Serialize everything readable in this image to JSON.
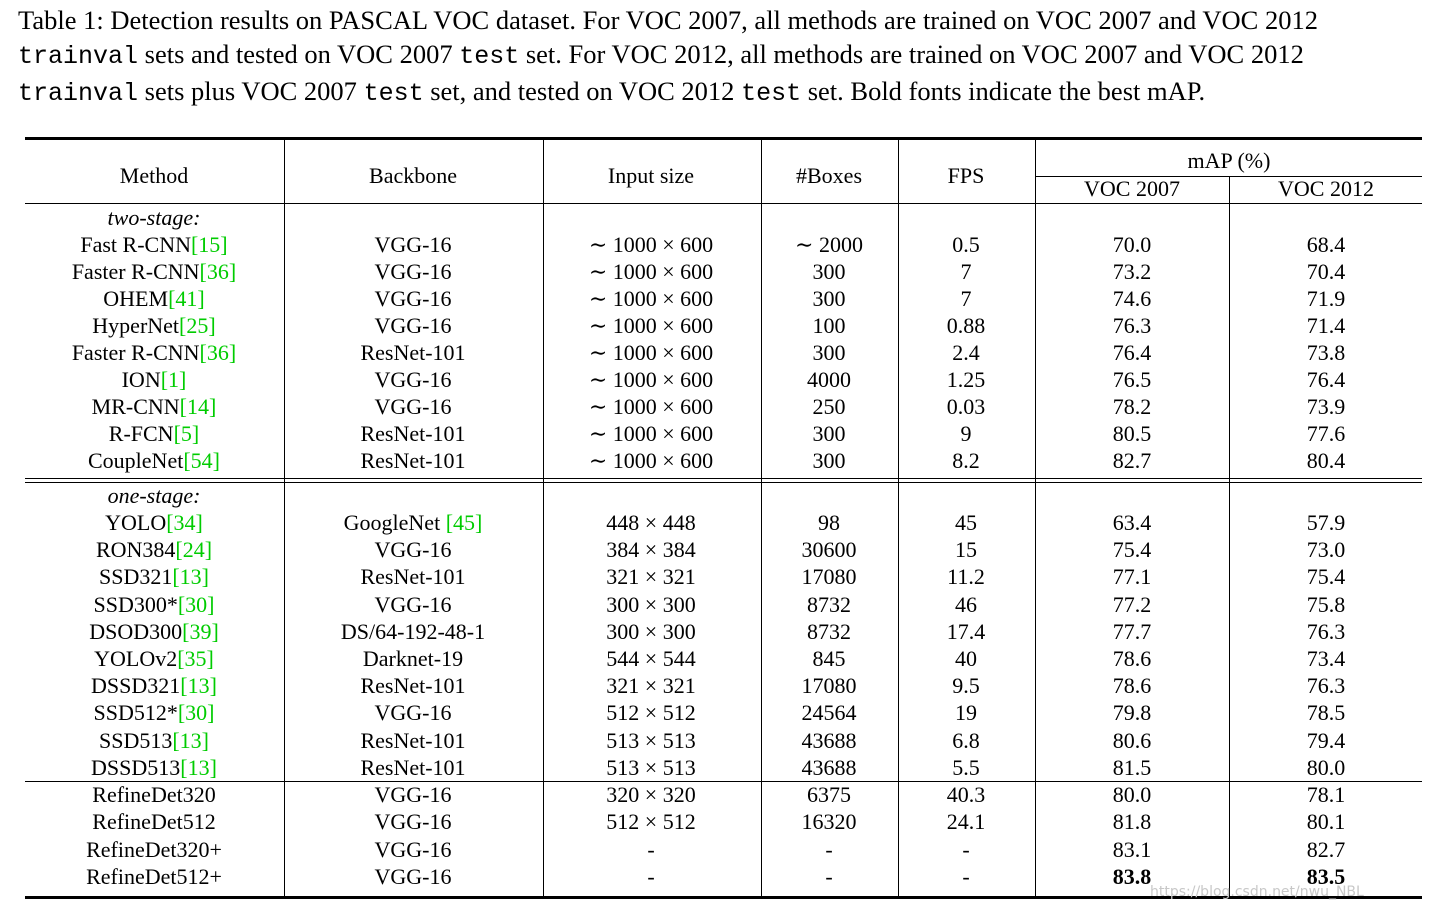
{
  "caption": {
    "label": "Table 1: Detection results on PASCAL VOC dataset. For VOC 2007, all methods are trained on VOC 2007 and VOC 2012",
    "line2_code1": "trainval",
    "line2_text": " sets and tested on VOC 2007 ",
    "line2_code2": "test",
    "line2_text2": " set. For VOC 2012, all methods are trained on VOC 2007 and VOC 2012",
    "line3_code1": "trainval",
    "line3_text": " sets plus VOC 2007 ",
    "line3_code2": "test",
    "line3_text2": " set, and tested on VOC 2012 ",
    "line3_code3": "test",
    "line3_text3": " set. Bold fonts indicate the best mAP."
  },
  "table": {
    "headers": {
      "method": "Method",
      "backbone": "Backbone",
      "input_size": "Input size",
      "boxes": "#Boxes",
      "fps": "FPS",
      "map": "mAP (%)",
      "voc2007": "VOC 2007",
      "voc2012": "VOC 2012"
    },
    "sections": [
      {
        "label": "two-stage:",
        "rows": [
          {
            "method": "Fast R-CNN",
            "ref": "[15]",
            "backbone": "VGG-16",
            "backbone_ref": "",
            "input": "∼ 1000 × 600",
            "boxes": "∼ 2000",
            "fps": "0.5",
            "voc2007": "70.0",
            "voc2012": "68.4"
          },
          {
            "method": "Faster R-CNN",
            "ref": "[36]",
            "backbone": "VGG-16",
            "backbone_ref": "",
            "input": "∼ 1000 × 600",
            "boxes": "300",
            "fps": "7",
            "voc2007": "73.2",
            "voc2012": "70.4"
          },
          {
            "method": "OHEM",
            "ref": "[41]",
            "backbone": "VGG-16",
            "backbone_ref": "",
            "input": "∼ 1000 × 600",
            "boxes": "300",
            "fps": "7",
            "voc2007": "74.6",
            "voc2012": "71.9"
          },
          {
            "method": "HyperNet",
            "ref": "[25]",
            "backbone": "VGG-16",
            "backbone_ref": "",
            "input": "∼ 1000 × 600",
            "boxes": "100",
            "fps": "0.88",
            "voc2007": "76.3",
            "voc2012": "71.4"
          },
          {
            "method": "Faster R-CNN",
            "ref": "[36]",
            "backbone": "ResNet-101",
            "backbone_ref": "",
            "input": "∼ 1000 × 600",
            "boxes": "300",
            "fps": "2.4",
            "voc2007": "76.4",
            "voc2012": "73.8"
          },
          {
            "method": "ION",
            "ref": "[1]",
            "backbone": "VGG-16",
            "backbone_ref": "",
            "input": "∼ 1000 × 600",
            "boxes": "4000",
            "fps": "1.25",
            "voc2007": "76.5",
            "voc2012": "76.4"
          },
          {
            "method": "MR-CNN",
            "ref": "[14]",
            "backbone": "VGG-16",
            "backbone_ref": "",
            "input": "∼ 1000 × 600",
            "boxes": "250",
            "fps": "0.03",
            "voc2007": "78.2",
            "voc2012": "73.9"
          },
          {
            "method": "R-FCN",
            "ref": "[5]",
            "backbone": "ResNet-101",
            "backbone_ref": "",
            "input": "∼ 1000 × 600",
            "boxes": "300",
            "fps": "9",
            "voc2007": "80.5",
            "voc2012": "77.6"
          },
          {
            "method": "CoupleNet",
            "ref": "[54]",
            "backbone": "ResNet-101",
            "backbone_ref": "",
            "input": "∼ 1000 × 600",
            "boxes": "300",
            "fps": "8.2",
            "voc2007": "82.7",
            "voc2012": "80.4"
          }
        ]
      },
      {
        "label": "one-stage:",
        "rows": [
          {
            "method": "YOLO",
            "ref": "[34]",
            "backbone": "GoogleNet ",
            "backbone_ref": "[45]",
            "input": "448 × 448",
            "boxes": "98",
            "fps": "45",
            "voc2007": "63.4",
            "voc2012": "57.9"
          },
          {
            "method": "RON384",
            "ref": "[24]",
            "backbone": "VGG-16",
            "backbone_ref": "",
            "input": "384 × 384",
            "boxes": "30600",
            "fps": "15",
            "voc2007": "75.4",
            "voc2012": "73.0"
          },
          {
            "method": "SSD321",
            "ref": "[13]",
            "backbone": "ResNet-101",
            "backbone_ref": "",
            "input": "321 × 321",
            "boxes": "17080",
            "fps": "11.2",
            "voc2007": "77.1",
            "voc2012": "75.4"
          },
          {
            "method": "SSD300*",
            "ref": "[30]",
            "backbone": "VGG-16",
            "backbone_ref": "",
            "input": "300 × 300",
            "boxes": "8732",
            "fps": "46",
            "voc2007": "77.2",
            "voc2012": "75.8"
          },
          {
            "method": "DSOD300",
            "ref": "[39]",
            "backbone": "DS/64-192-48-1",
            "backbone_ref": "",
            "input": "300 × 300",
            "boxes": "8732",
            "fps": "17.4",
            "voc2007": "77.7",
            "voc2012": "76.3"
          },
          {
            "method": "YOLOv2",
            "ref": "[35]",
            "backbone": "Darknet-19",
            "backbone_ref": "",
            "input": "544 × 544",
            "boxes": "845",
            "fps": "40",
            "voc2007": "78.6",
            "voc2012": "73.4"
          },
          {
            "method": "DSSD321",
            "ref": "[13]",
            "backbone": "ResNet-101",
            "backbone_ref": "",
            "input": "321 × 321",
            "boxes": "17080",
            "fps": "9.5",
            "voc2007": "78.6",
            "voc2012": "76.3"
          },
          {
            "method": "SSD512*",
            "ref": "[30]",
            "backbone": "VGG-16",
            "backbone_ref": "",
            "input": "512 × 512",
            "boxes": "24564",
            "fps": "19",
            "voc2007": "79.8",
            "voc2012": "78.5"
          },
          {
            "method": "SSD513",
            "ref": "[13]",
            "backbone": "ResNet-101",
            "backbone_ref": "",
            "input": "513 × 513",
            "boxes": "43688",
            "fps": "6.8",
            "voc2007": "80.6",
            "voc2012": "79.4"
          },
          {
            "method": "DSSD513",
            "ref": "[13]",
            "backbone": "ResNet-101",
            "backbone_ref": "",
            "input": "513 × 513",
            "boxes": "43688",
            "fps": "5.5",
            "voc2007": "81.5",
            "voc2012": "80.0"
          }
        ]
      },
      {
        "label": "",
        "rows": [
          {
            "method": "RefineDet320",
            "ref": "",
            "backbone": "VGG-16",
            "backbone_ref": "",
            "input": "320 × 320",
            "boxes": "6375",
            "fps": "40.3",
            "voc2007": "80.0",
            "voc2012": "78.1"
          },
          {
            "method": "RefineDet512",
            "ref": "",
            "backbone": "VGG-16",
            "backbone_ref": "",
            "input": "512 × 512",
            "boxes": "16320",
            "fps": "24.1",
            "voc2007": "81.8",
            "voc2012": "80.1"
          },
          {
            "method": "RefineDet320+",
            "ref": "",
            "backbone": "VGG-16",
            "backbone_ref": "",
            "input": "-",
            "boxes": "-",
            "fps": "-",
            "voc2007": "83.1",
            "voc2012": "82.7"
          },
          {
            "method": "RefineDet512+",
            "ref": "",
            "backbone": "VGG-16",
            "backbone_ref": "",
            "input": "-",
            "boxes": "-",
            "fps": "-",
            "voc2007": "83.8",
            "voc2012": "83.5",
            "bold": true
          }
        ]
      }
    ]
  },
  "watermark": "https://blog.csdn.net/nwu_NBL",
  "colors": {
    "reference": "#00cc00",
    "watermark": "#c8c8c8"
  }
}
